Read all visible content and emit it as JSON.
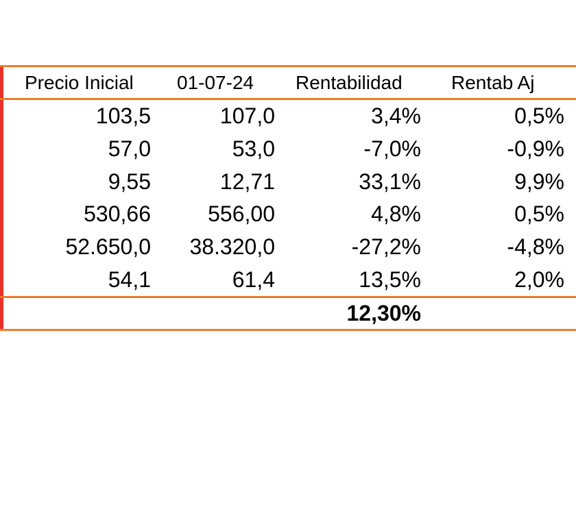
{
  "table": {
    "headers": [
      "Precio Inicial",
      "01-07-24",
      "Rentabilidad",
      "Rentab Aj"
    ],
    "rows": [
      [
        "103,5",
        "107,0",
        "3,4%",
        "0,5%"
      ],
      [
        "57,0",
        "53,0",
        "-7,0%",
        "-0,9%"
      ],
      [
        "9,55",
        "12,71",
        "33,1%",
        "9,9%"
      ],
      [
        "530,66",
        "556,00",
        "4,8%",
        "0,5%"
      ],
      [
        "52.650,0",
        "38.320,0",
        "-27,2%",
        "-4,8%"
      ],
      [
        "54,1",
        "61,4",
        "13,5%",
        "2,0%"
      ]
    ],
    "total": "12,30%"
  },
  "colors": {
    "row_border": "#f07a2a",
    "left_border": "#e8312a"
  }
}
